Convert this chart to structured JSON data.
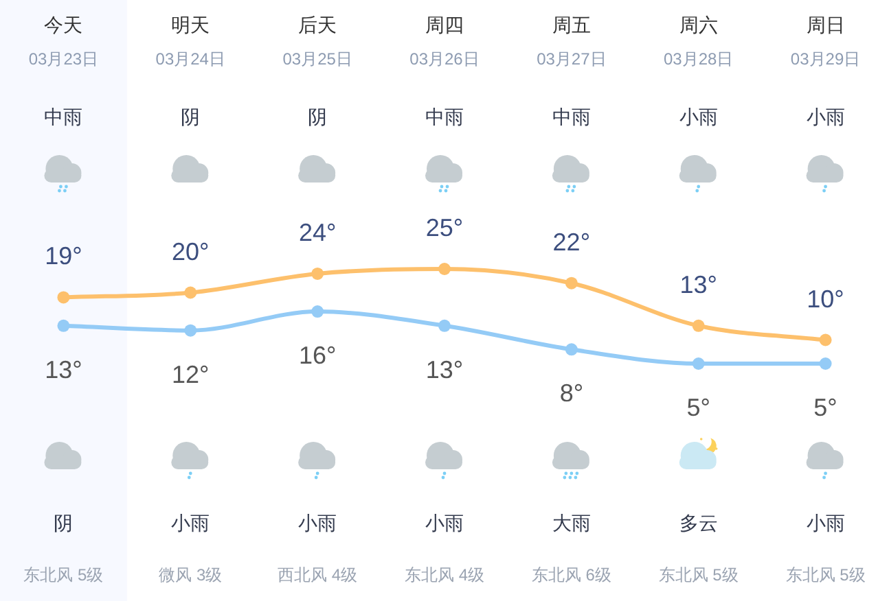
{
  "chart_data": {
    "type": "line",
    "categories": [
      "今天\n03月23日",
      "明天\n03月24日",
      "后天\n03月25日",
      "周四\n03月26日",
      "周五\n03月27日",
      "周六\n03月28日",
      "周日\n03月29日"
    ],
    "series": [
      {
        "color": "#fdc06c",
        "values": [
          19,
          20,
          24,
          25,
          22,
          13,
          10
        ],
        "value_labels": [
          "19°",
          "20°",
          "24°",
          "25°",
          "22°",
          "13°",
          "10°"
        ]
      },
      {
        "color": "#94cbf6",
        "values": [
          13,
          12,
          16,
          13,
          8,
          5,
          5
        ],
        "value_labels": [
          "13°",
          "12°",
          "16°",
          "13°",
          "8°",
          "5°",
          "5°"
        ]
      }
    ],
    "marker": "circle",
    "tick_labels": "x",
    "bands": [
      {
        "axis": "x",
        "from": "今天\n03月23日",
        "to": "今天\n03月23日",
        "color": "#f7f9ff"
      }
    ],
    "annotations": [
      "中雨",
      "阴",
      "阴",
      "中雨",
      "中雨",
      "小雨",
      "小雨",
      "阴",
      "小雨",
      "小雨",
      "小雨",
      "大雨",
      "多云",
      "小雨",
      "东北风 5级",
      "微风 3级",
      "西北风 4级",
      "东北风 4级",
      "东北风 6级",
      "东北风 5级",
      "东北风 5级"
    ]
  }
}
